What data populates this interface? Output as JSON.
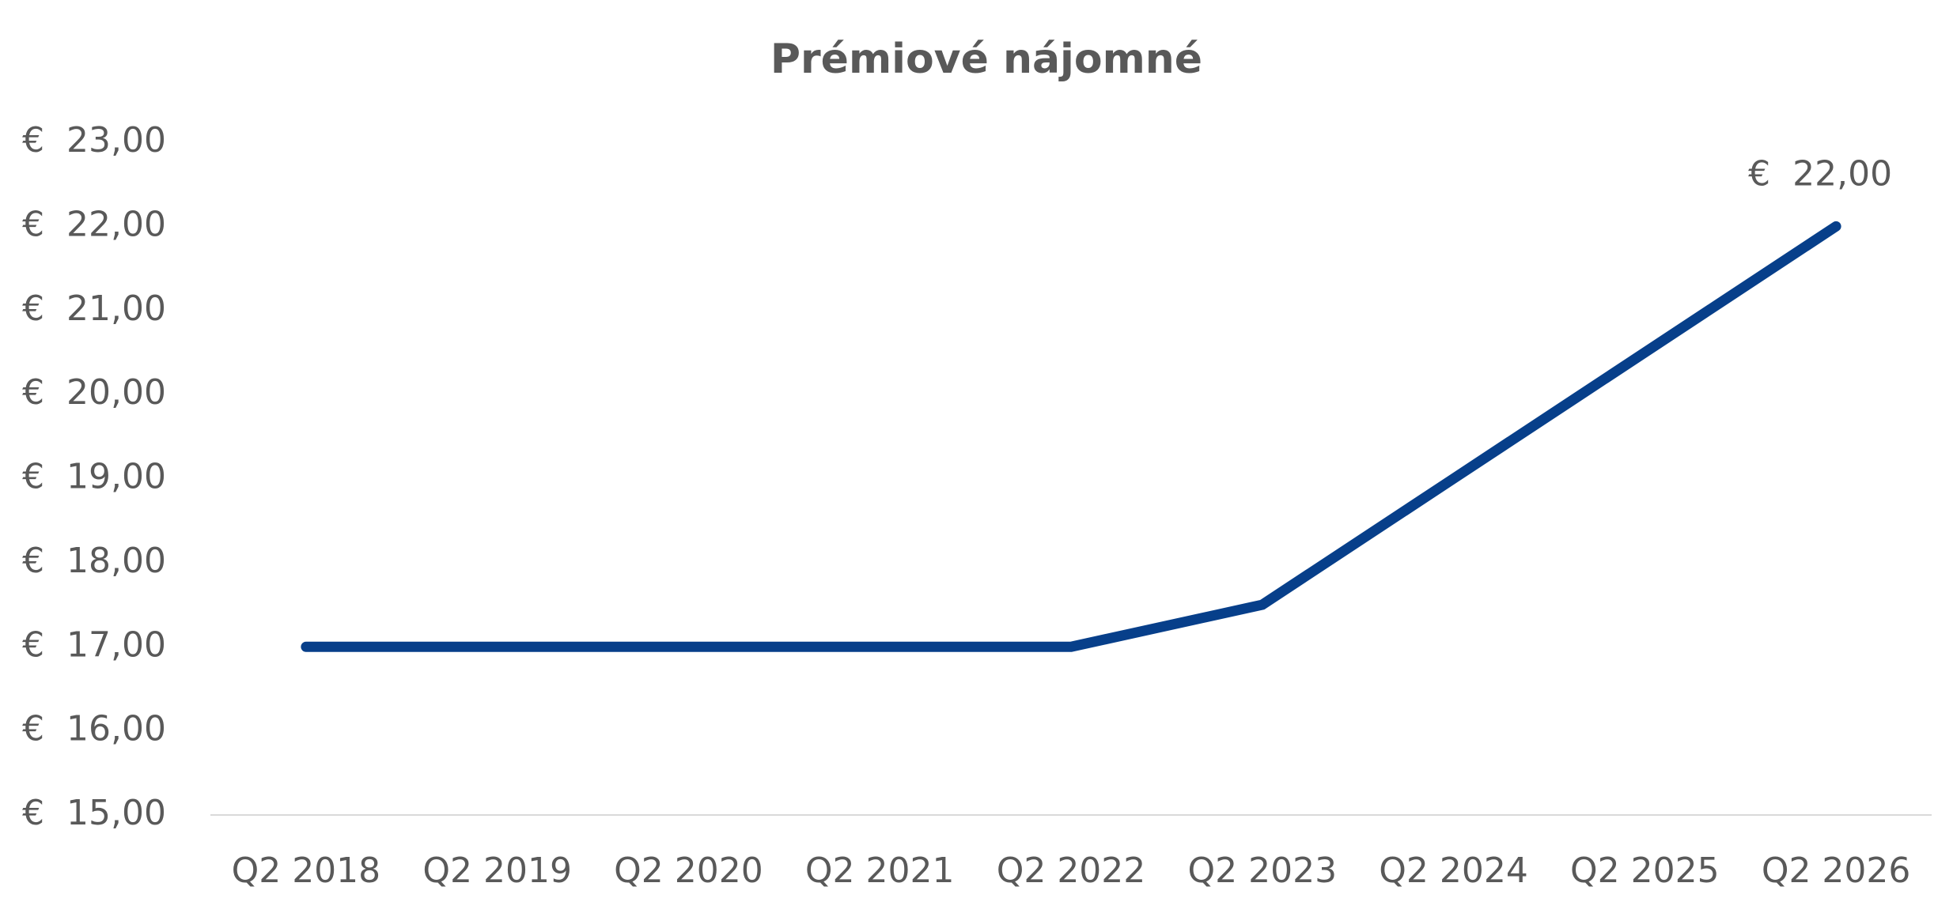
{
  "chart_data": {
    "type": "line",
    "title": "Prémiové nájomné",
    "categories": [
      "Q2 2018",
      "Q2 2019",
      "Q2 2020",
      "Q2 2021",
      "Q2 2022",
      "Q2 2023",
      "Q2 2024",
      "Q2 2025",
      "Q2 2026"
    ],
    "values": [
      17,
      17,
      17,
      17,
      17,
      17.5,
      19,
      20.5,
      22
    ],
    "value_labels": [
      null,
      null,
      null,
      null,
      null,
      null,
      null,
      null,
      "€  22,00"
    ],
    "color": "#073f8a",
    "ylim": [
      15,
      23
    ],
    "yticks": [
      {
        "value": 15,
        "label": "€  15,00"
      },
      {
        "value": 16,
        "label": "€  16,00"
      },
      {
        "value": 17,
        "label": "€  17,00"
      },
      {
        "value": 18,
        "label": "€  18,00"
      },
      {
        "value": 19,
        "label": "€  19,00"
      },
      {
        "value": 20,
        "label": "€  20,00"
      },
      {
        "value": 21,
        "label": "€  21,00"
      },
      {
        "value": 22,
        "label": "€  22,00"
      },
      {
        "value": 23,
        "label": "€  23,00"
      }
    ],
    "grid": false
  }
}
